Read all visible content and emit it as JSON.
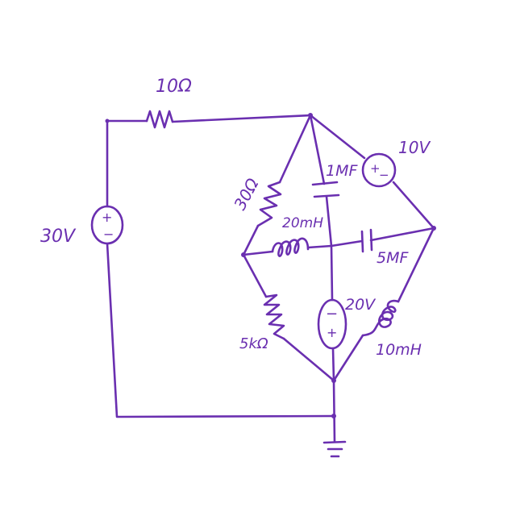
{
  "diagram": {
    "stroke_color": "#6a2fb0",
    "background": "#ffffff",
    "components": {
      "source_30v": {
        "label": "30V",
        "plus": "+",
        "minus": "−"
      },
      "resistor_10": {
        "label": "10Ω"
      },
      "resistor_30": {
        "label": "30Ω"
      },
      "capacitor_1mf": {
        "label": "1MF"
      },
      "source_10v": {
        "label": "10V",
        "plus": "+",
        "minus": "−"
      },
      "inductor_20mh": {
        "label": "20mH"
      },
      "capacitor_5mf": {
        "label": "5MF"
      },
      "resistor_5k": {
        "label": "5kΩ"
      },
      "source_20v": {
        "label": "20V",
        "plus": "+",
        "minus": "−"
      },
      "inductor_10mh": {
        "label": "10mH"
      }
    },
    "ground": {
      "icon": "ground-icon"
    }
  }
}
